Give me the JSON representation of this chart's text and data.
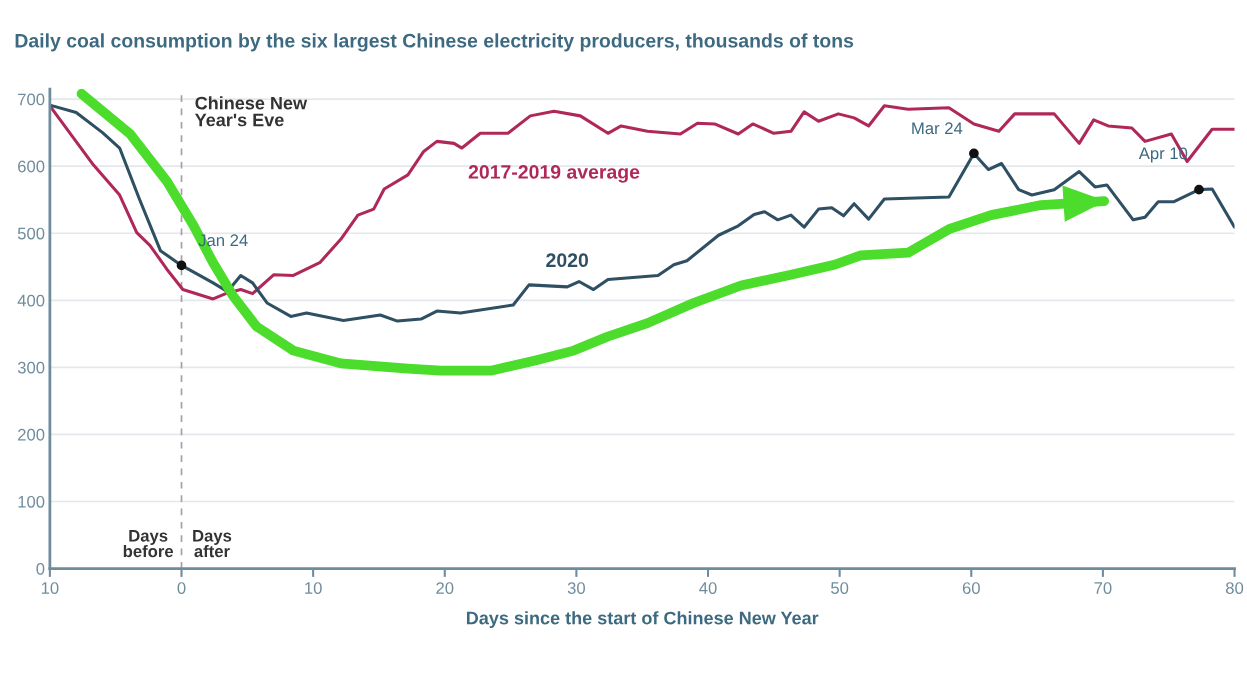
{
  "chart_data": {
    "type": "line",
    "title": "Daily coal consumption by the six largest Chinese electricity producers, thousands of tons",
    "xlabel": "Days since the start of Chinese New Year",
    "xlim": [
      -10,
      80
    ],
    "xticks": [
      {
        "value": -10,
        "label": "10"
      },
      0,
      10,
      20,
      30,
      40,
      50,
      60,
      70,
      80
    ],
    "ylim": [
      0,
      715
    ],
    "yticks": [
      0,
      100,
      200,
      300,
      400,
      500,
      600,
      700
    ],
    "grid": "y",
    "series": [
      {
        "name": "2017-2019 average",
        "color": "#b0285a",
        "x": [
          -10,
          -6.7,
          -4.7,
          -3.4,
          -2.4,
          -1.1,
          0.1,
          2.4,
          3.5,
          4.5,
          5.4,
          7.0,
          8.5,
          10.5,
          12.1,
          13.4,
          14.6,
          15.4,
          17.2,
          18.4,
          19.4,
          20.7,
          21.3,
          22.7,
          24.8,
          26.5,
          28.3,
          30.3,
          32.4,
          33.4,
          35.4,
          37.9,
          39.2,
          40.5,
          42.3,
          43.4,
          45.0,
          46.3,
          47.3,
          48.4,
          49.9,
          51.1,
          52.2,
          53.4,
          55.2,
          58.3,
          60.2,
          62.1,
          63.3,
          66.3,
          68.2,
          69.3,
          70.4,
          72.2,
          73.2,
          75.2,
          76.4,
          78.3,
          80
        ],
        "values": [
          690,
          602,
          557,
          501,
          482,
          446,
          416,
          402,
          411,
          416,
          410,
          438,
          437,
          456,
          491,
          527,
          536,
          566,
          587,
          622,
          637,
          634,
          627,
          649,
          649,
          675,
          682,
          675,
          649,
          660,
          652,
          648,
          664,
          663,
          648,
          663,
          649,
          652,
          681,
          667,
          678,
          672,
          660,
          690,
          685,
          687,
          663,
          652,
          678,
          678,
          634,
          669,
          660,
          657,
          637,
          648,
          607,
          655,
          655
        ]
      },
      {
        "name": "2020",
        "color": "#2f4f63",
        "x": [
          -10,
          -8,
          -6,
          -4.7,
          -3.2,
          -1.6,
          0,
          2.4,
          3.5,
          4.5,
          5.4,
          6.5,
          8.3,
          9.5,
          12.3,
          15.1,
          16.4,
          18.2,
          19.4,
          21.2,
          25.2,
          26.4,
          29.3,
          30.2,
          31.3,
          32.4,
          36.2,
          37.4,
          38.4,
          40.8,
          42.3,
          43.5,
          44.3,
          45.3,
          46.3,
          47.3,
          48.4,
          49.4,
          50.3,
          51.1,
          52.2,
          53.4,
          58.3,
          60.2,
          61.3,
          62.3,
          63.6,
          64.6,
          66.3,
          68.2,
          69.4,
          70.3,
          72.3,
          73.2,
          74.2,
          75.4,
          77.3,
          78.3,
          80
        ],
        "values": [
          691,
          680,
          650,
          627,
          551,
          474,
          452,
          426,
          413,
          437,
          426,
          396,
          376,
          381,
          370,
          378,
          369,
          372,
          384,
          381,
          393,
          423,
          420,
          428,
          416,
          431,
          437,
          453,
          459,
          497,
          511,
          528,
          532,
          520,
          527,
          509,
          536,
          538,
          526,
          544,
          521,
          551,
          554,
          619,
          595,
          604,
          565,
          557,
          565,
          592,
          569,
          572,
          520,
          524,
          547,
          547,
          565,
          566,
          509
        ]
      },
      {
        "color": "#4cdc2c",
        "x": [
          -7.6,
          -3.9,
          -1.1,
          0.9,
          2.4,
          3.9,
          5.7,
          8.5,
          12.1,
          17.2,
          19.7,
          23.5,
          26.8,
          29.8,
          32.4,
          35.4,
          38.9,
          42.5,
          46.3,
          49.6,
          51.6,
          55.2,
          58.3,
          61.5,
          65.3,
          70.1
        ],
        "values": [
          708,
          648,
          577,
          512,
          456,
          407,
          361,
          325,
          306,
          298,
          295,
          295,
          310,
          325,
          346,
          366,
          396,
          422,
          438,
          453,
          467,
          471,
          506,
          527,
          542,
          548
        ]
      }
    ],
    "ref_lines": [
      {
        "axis": "x",
        "value": 0,
        "label": "Chinese New Year's Eve",
        "color": "#a0a0a8",
        "line_style": "dashed"
      }
    ],
    "annotations": [
      {
        "text": "Jan 24",
        "x": 0,
        "y": 452
      },
      {
        "text": "Mar 24",
        "x": 60.2,
        "y": 619
      },
      {
        "text": "Apr 10",
        "x": 77.3,
        "y": 565
      },
      "Days before",
      "Days after"
    ]
  }
}
